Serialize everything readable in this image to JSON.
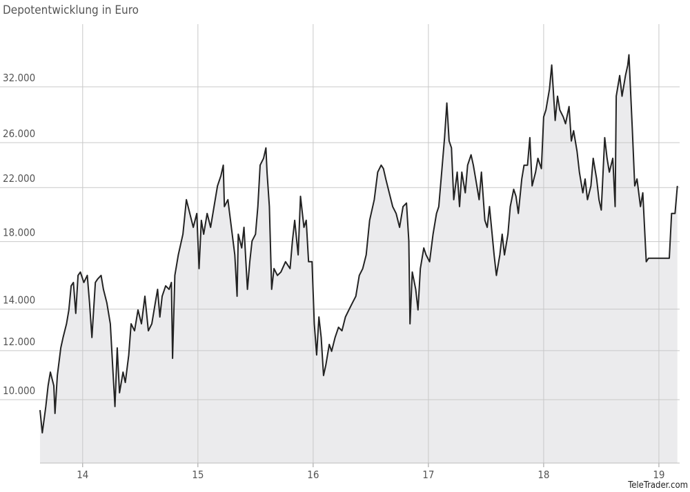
{
  "chart_data": {
    "type": "line",
    "title": "Depotentwicklung in Euro",
    "source": "TeleTrader.com",
    "log_y": true,
    "grid": true,
    "xlim": [
      13.63,
      19.18
    ],
    "xticks": [
      14,
      15,
      16,
      17,
      18,
      19
    ],
    "ylim": [
      7900,
      40400
    ],
    "yticks": [
      {
        "value": 10000,
        "label": "10.000"
      },
      {
        "value": 12000,
        "label": "12.000"
      },
      {
        "value": 14000,
        "label": "14.000"
      },
      {
        "value": 18000,
        "label": "18.000"
      },
      {
        "value": 22000,
        "label": "22.000"
      },
      {
        "value": 26000,
        "label": "26.000"
      },
      {
        "value": 32000,
        "label": "32.000"
      }
    ],
    "area_color": "#ebebed",
    "x": [
      13.63,
      13.65,
      13.68,
      13.7,
      13.72,
      13.75,
      13.76,
      13.78,
      13.81,
      13.83,
      13.86,
      13.88,
      13.9,
      13.92,
      13.94,
      13.96,
      13.98,
      14.01,
      14.04,
      14.06,
      14.08,
      14.11,
      14.13,
      14.16,
      14.18,
      14.21,
      14.24,
      14.26,
      14.28,
      14.3,
      14.32,
      14.35,
      14.37,
      14.4,
      14.42,
      14.45,
      14.48,
      14.51,
      14.54,
      14.57,
      14.6,
      14.63,
      14.65,
      14.67,
      14.69,
      14.72,
      14.75,
      14.77,
      14.78,
      14.8,
      14.83,
      14.85,
      14.87,
      14.9,
      14.93,
      14.96,
      14.99,
      15.01,
      15.03,
      15.05,
      15.08,
      15.11,
      15.14,
      15.17,
      15.2,
      15.22,
      15.23,
      15.26,
      15.29,
      15.32,
      15.34,
      15.35,
      15.38,
      15.4,
      15.43,
      15.45,
      15.47,
      15.5,
      15.52,
      15.54,
      15.57,
      15.59,
      15.6,
      15.62,
      15.64,
      15.66,
      15.69,
      15.72,
      15.76,
      15.8,
      15.82,
      15.84,
      15.87,
      15.89,
      15.92,
      15.94,
      15.96,
      15.99,
      16.01,
      16.03,
      16.05,
      16.07,
      16.09,
      16.11,
      16.14,
      16.16,
      16.19,
      16.22,
      16.25,
      16.28,
      16.31,
      16.34,
      16.37,
      16.4,
      16.43,
      16.46,
      16.49,
      16.53,
      16.56,
      16.59,
      16.61,
      16.63,
      16.66,
      16.69,
      16.72,
      16.75,
      16.78,
      16.81,
      16.83,
      16.84,
      16.86,
      16.89,
      16.91,
      16.93,
      16.96,
      16.98,
      17.01,
      17.04,
      17.07,
      17.09,
      17.11,
      17.14,
      17.16,
      17.18,
      17.2,
      17.22,
      17.25,
      17.27,
      17.29,
      17.32,
      17.34,
      17.37,
      17.39,
      17.41,
      17.44,
      17.46,
      17.49,
      17.51,
      17.53,
      17.57,
      17.59,
      17.62,
      17.64,
      17.66,
      17.69,
      17.71,
      17.74,
      17.76,
      17.78,
      17.81,
      17.83,
      17.86,
      17.88,
      17.9,
      17.93,
      17.95,
      17.98,
      18.0,
      18.02,
      18.05,
      18.07,
      18.1,
      18.12,
      18.14,
      18.17,
      18.19,
      18.22,
      18.24,
      18.26,
      18.29,
      18.31,
      18.34,
      18.36,
      18.38,
      18.41,
      18.43,
      18.46,
      18.48,
      18.5,
      18.53,
      18.55,
      18.57,
      18.6,
      18.62,
      18.63,
      18.66,
      18.68,
      18.71,
      18.73,
      18.74,
      18.77,
      18.79,
      18.81,
      18.84,
      18.86,
      18.89,
      18.91,
      18.94,
      19.09,
      19.11,
      19.14,
      19.16
    ],
    "series": [
      {
        "color": "#222222",
        "values": [
          9620,
          8840,
          9750,
          10530,
          11080,
          10530,
          9500,
          10940,
          12120,
          12600,
          13260,
          13960,
          15270,
          15460,
          13780,
          15870,
          16070,
          15460,
          15870,
          14320,
          12600,
          15460,
          15660,
          15870,
          15070,
          14320,
          13260,
          11370,
          9750,
          12120,
          10260,
          11080,
          10660,
          11810,
          13260,
          12920,
          13960,
          13260,
          14690,
          12920,
          13260,
          14320,
          15070,
          13600,
          14690,
          15270,
          15070,
          15460,
          11660,
          15870,
          17130,
          17810,
          18500,
          21030,
          19980,
          18980,
          19980,
          16280,
          19480,
          18500,
          19980,
          18980,
          20500,
          22140,
          23000,
          23910,
          20500,
          21030,
          18980,
          17130,
          14690,
          18500,
          17580,
          18980,
          15070,
          16700,
          18040,
          18500,
          20500,
          23910,
          24530,
          25500,
          23300,
          20500,
          15070,
          16280,
          15870,
          16070,
          16700,
          16280,
          18040,
          19480,
          17130,
          21300,
          18980,
          19480,
          16700,
          16700,
          13260,
          11810,
          13600,
          12600,
          10940,
          11370,
          12280,
          11970,
          12600,
          13090,
          12920,
          13600,
          13960,
          14320,
          14690,
          15870,
          16280,
          17130,
          19480,
          21030,
          23300,
          23910,
          23610,
          22720,
          21580,
          20500,
          19980,
          18980,
          20500,
          20770,
          18040,
          13260,
          16070,
          15070,
          13960,
          16280,
          17580,
          17130,
          16700,
          18500,
          19980,
          20500,
          22720,
          26490,
          30130,
          26160,
          25500,
          21030,
          23300,
          20500,
          23300,
          21580,
          23910,
          24850,
          23910,
          22720,
          21030,
          23300,
          19480,
          18980,
          20500,
          17130,
          15870,
          17130,
          18500,
          17130,
          18500,
          20500,
          21860,
          21300,
          19980,
          22720,
          23910,
          23910,
          26490,
          22140,
          23300,
          24530,
          23610,
          28610,
          29360,
          31710,
          34700,
          28240,
          30900,
          29360,
          28610,
          27890,
          29740,
          26160,
          27180,
          25170,
          23300,
          21580,
          22720,
          21030,
          22140,
          24530,
          22720,
          21030,
          20240,
          26490,
          24530,
          23300,
          24530,
          20500,
          30900,
          33370,
          30900,
          33370,
          34700,
          36050,
          27180,
          22140,
          22720,
          20500,
          21580,
          16700,
          16920,
          16920,
          16920,
          19980,
          19980,
          22140
        ]
      }
    ]
  }
}
